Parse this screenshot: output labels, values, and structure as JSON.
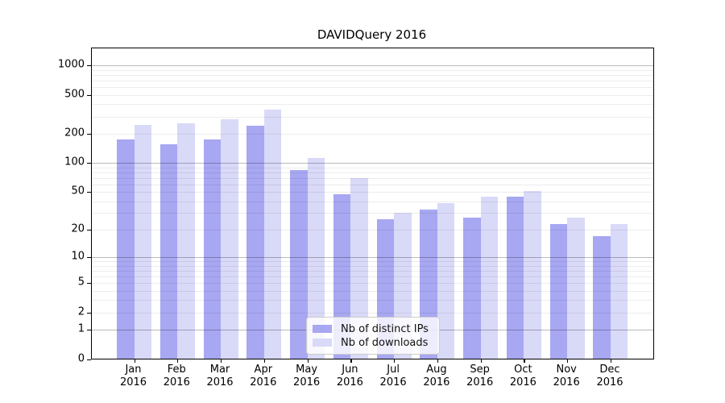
{
  "chart_data": {
    "type": "bar",
    "title": "DAVIDQuery 2016",
    "categories": [
      "Jan",
      "Feb",
      "Mar",
      "Apr",
      "May",
      "Jun",
      "Jul",
      "Aug",
      "Sep",
      "Oct",
      "Nov",
      "Dec"
    ],
    "x_tick_year": "2016",
    "series": [
      {
        "name": "Nb of distinct IPs",
        "color": "#a7a7f2",
        "values": [
          175,
          155,
          175,
          240,
          84,
          47,
          26,
          33,
          27,
          45,
          23,
          17
        ]
      },
      {
        "name": "Nb of downloads",
        "color": "#d9d9f8",
        "values": [
          245,
          255,
          282,
          350,
          113,
          70,
          30,
          38,
          45,
          51,
          27,
          23
        ]
      }
    ],
    "y_axis": {
      "scale": "symlog (position proportional to log10(1+value))",
      "ticks": [
        0,
        1,
        2,
        5,
        10,
        20,
        50,
        100,
        200,
        500,
        1000
      ],
      "range_top": 1400,
      "grid": "both-major-and-minor"
    },
    "legend": {
      "position": "lower center",
      "entries": [
        "Nb of distinct IPs",
        "Nb of downloads"
      ]
    }
  }
}
